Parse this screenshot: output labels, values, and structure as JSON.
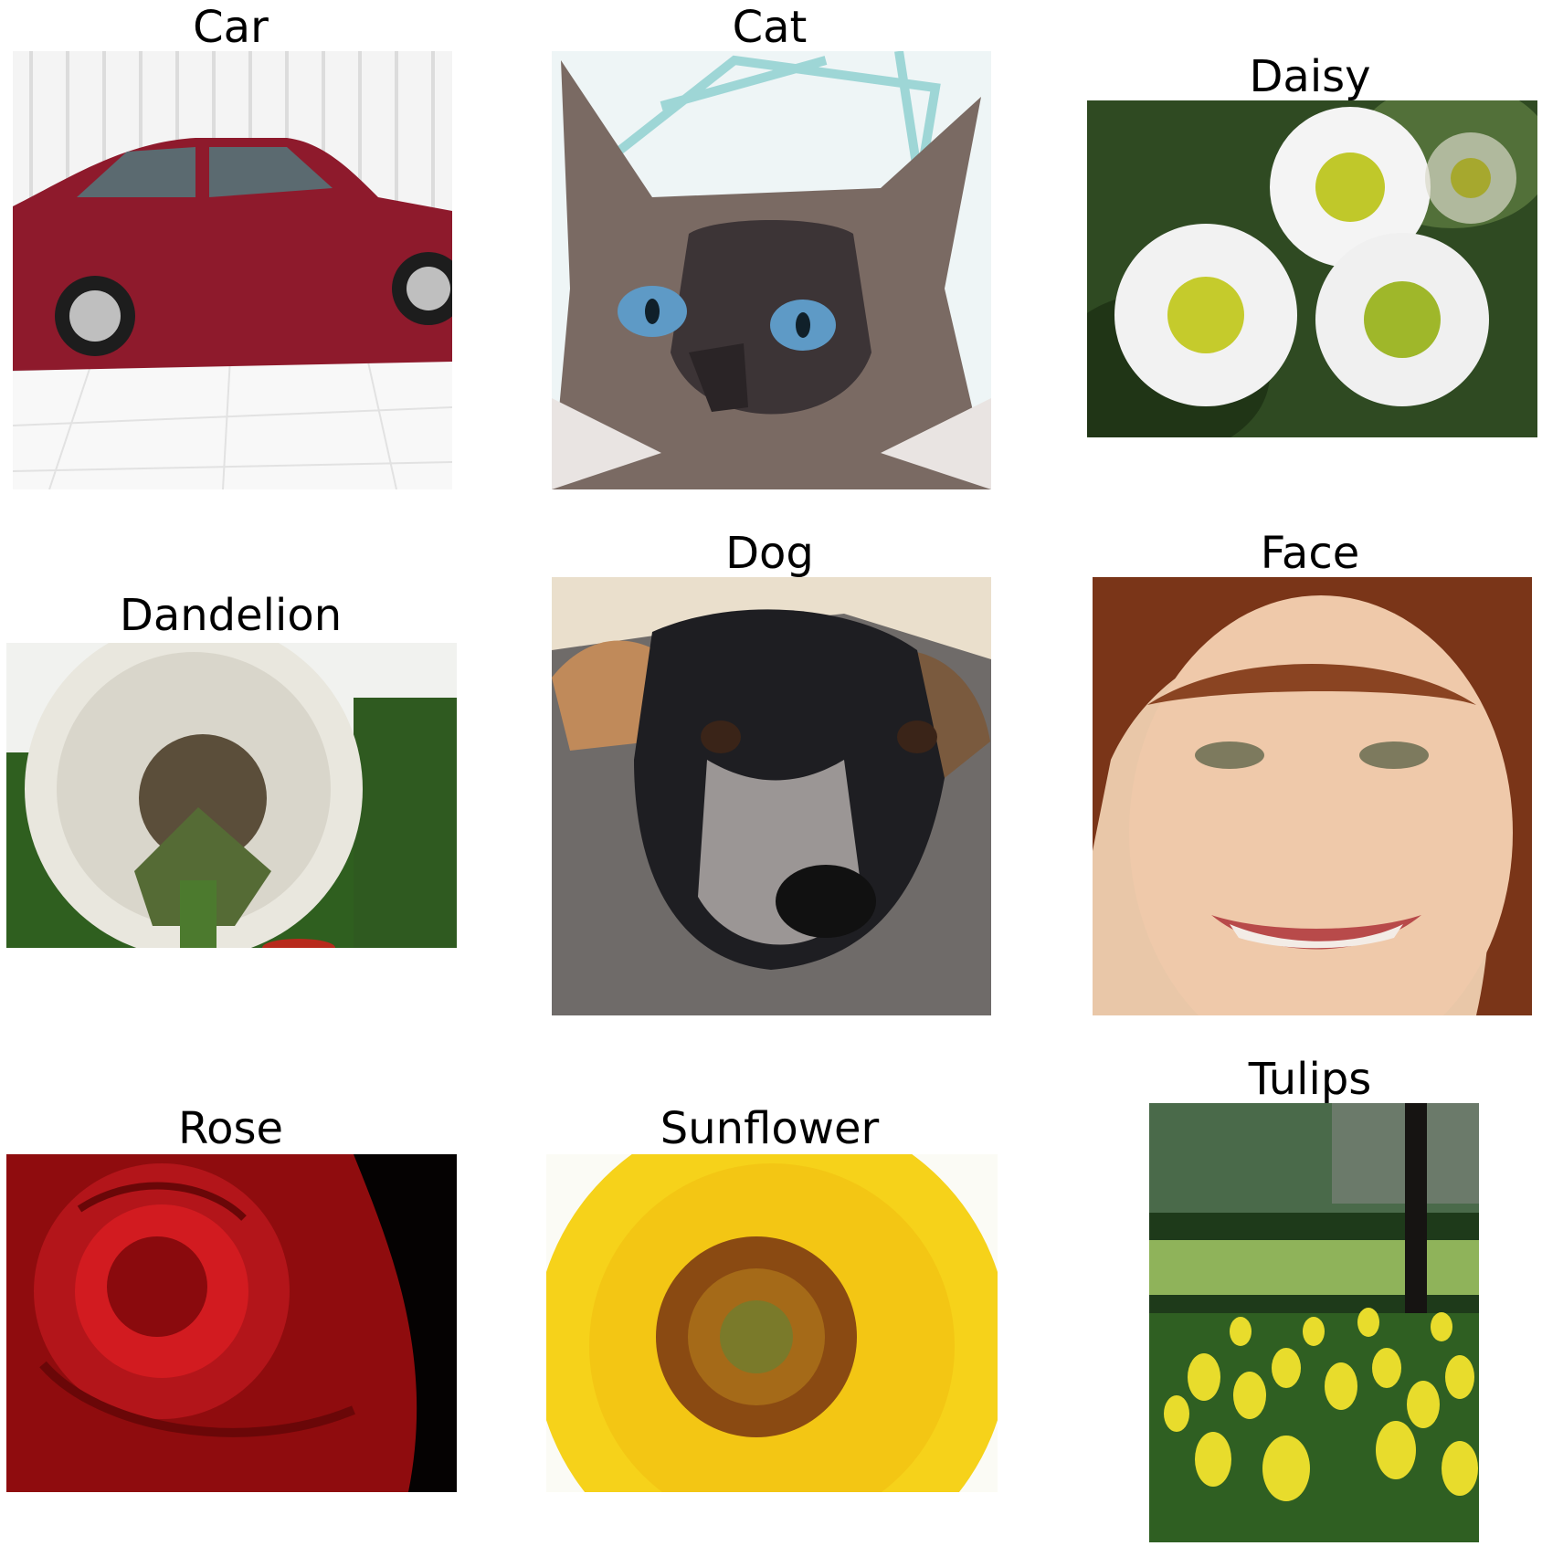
{
  "grid": [
    {
      "label": "Car"
    },
    {
      "label": "Cat"
    },
    {
      "label": "Daisy"
    },
    {
      "label": "Dandelion"
    },
    {
      "label": "Dog"
    },
    {
      "label": "Face"
    },
    {
      "label": "Rose"
    },
    {
      "label": "Sunflower"
    },
    {
      "label": "Tulips"
    }
  ]
}
